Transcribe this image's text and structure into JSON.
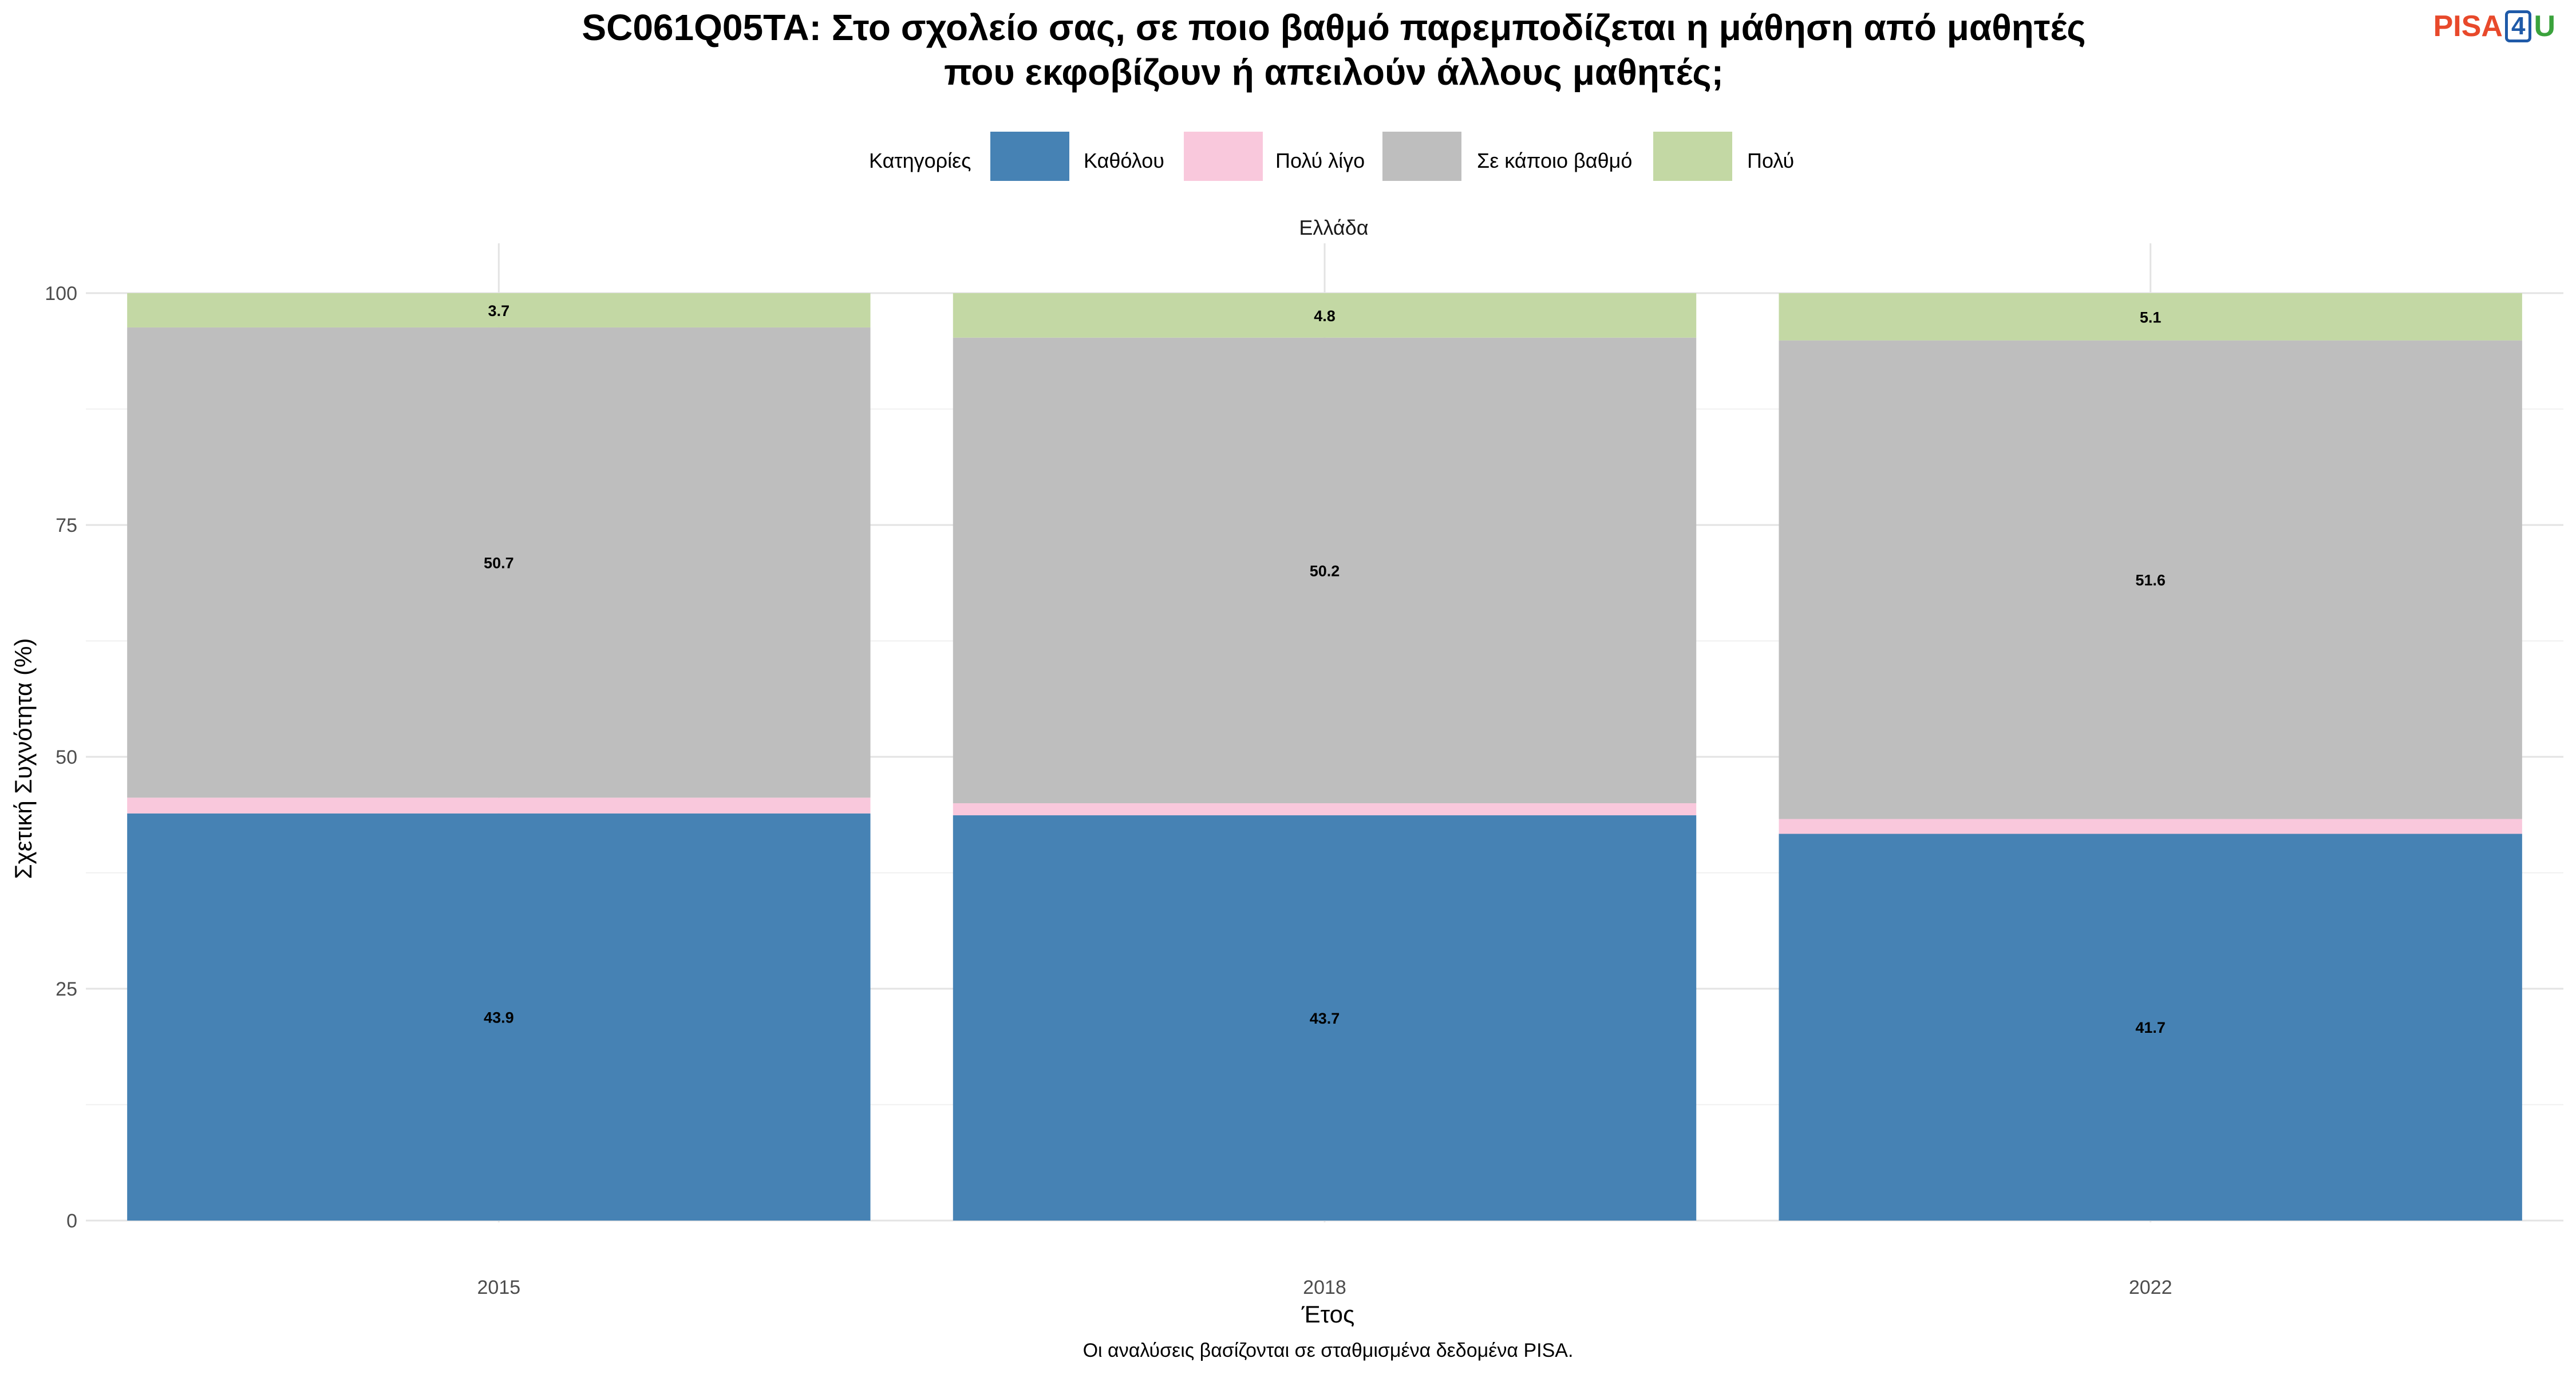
{
  "chart_data": {
    "type": "bar",
    "stacked": true,
    "title": "SC061Q05TA: Στο σχολείο σας, σε ποιο βαθμό παρεμποδίζεται η μάθηση από μαθητές που εκφοβίζουν ή απειλούν άλλους μαθητές;",
    "title_lines": [
      "SC061Q05TA: Στο σχολείο σας, σε ποιο βαθμό παρεμποδίζεται η μάθηση από μαθητές",
      "που εκφοβίζουν ή απειλούν άλλους μαθητές;"
    ],
    "legend_title": "Κατηγορίες",
    "legend_position": "top",
    "facet_label": "Ελλάδα",
    "xlabel": "Έτος",
    "ylabel": "Σχετική Συχνότητα (%)",
    "caption": "Οι αναλύσεις βασίζονται σε σταθμισμένα δεδομένα PISA.",
    "categories": [
      "2015",
      "2018",
      "2022"
    ],
    "ylim": [
      0,
      100
    ],
    "yticks": [
      0,
      25,
      50,
      75,
      100
    ],
    "grid": true,
    "series": [
      {
        "name": "Καθόλου",
        "color": "#4682b4",
        "values": [
          43.9,
          43.7,
          41.7
        ],
        "labels": [
          "43.9",
          "43.7",
          "41.7"
        ]
      },
      {
        "name": "Πολύ λίγο",
        "color": "#f9c8dc",
        "values": [
          1.7,
          1.3,
          1.6
        ],
        "labels": []
      },
      {
        "name": "Σε κάποιο βαθμό",
        "color": "#bebebe",
        "values": [
          50.7,
          50.2,
          51.6
        ],
        "labels": [
          "50.7",
          "50.2",
          "51.6"
        ]
      },
      {
        "name": "Πολύ",
        "color": "#c3d8a4",
        "values": [
          3.7,
          4.8,
          5.1
        ],
        "labels": [
          "3.7",
          "4.8",
          "5.1"
        ]
      }
    ]
  },
  "logo": {
    "part1": "PISA",
    "part2": "4",
    "part3": "U"
  }
}
